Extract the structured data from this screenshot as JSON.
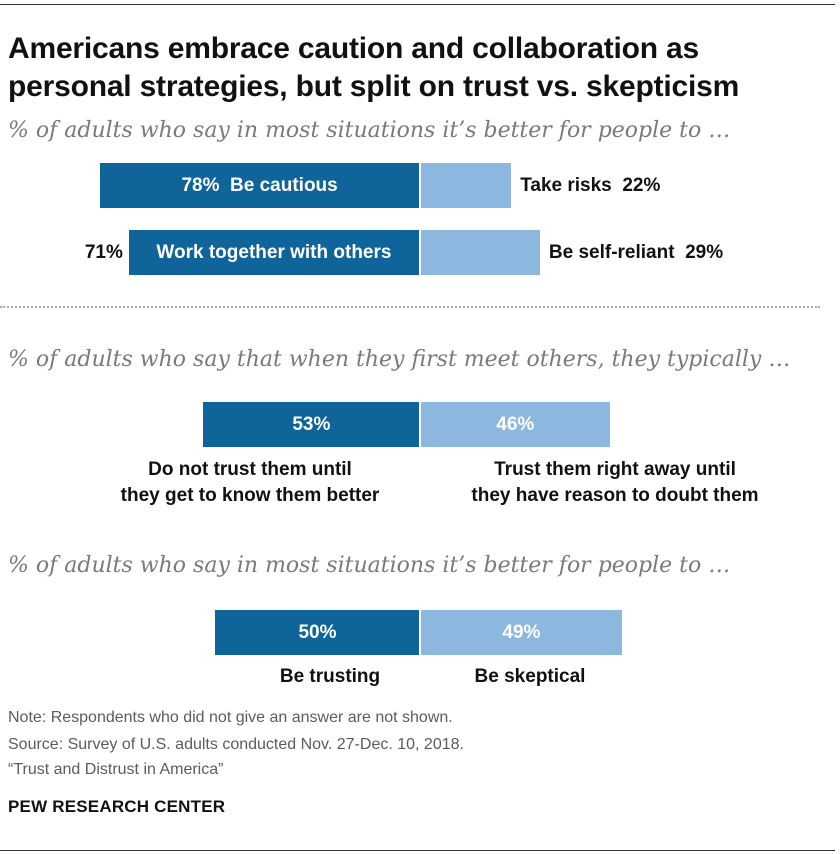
{
  "title": "Americans embrace caution and collaboration as personal strategies, but split on trust vs. skepticism",
  "sections": [
    {
      "subtitle": "% of adults who say in most situations it’s better for people to …",
      "rows": [
        {
          "left_label": "Be cautious",
          "left_value_text": "78%",
          "right_label": "Take risks",
          "right_value_text": "22%"
        },
        {
          "left_label": "Work together with others",
          "left_value_text": "71%",
          "right_label": "Be self-reliant",
          "right_value_text": "29%"
        }
      ]
    },
    {
      "subtitle": "% of adults who say that when they first meet others, they typically …",
      "left_value_text": "53%",
      "right_value_text": "46%",
      "left_caption": [
        "Do not trust them until",
        "they get to know them better"
      ],
      "right_caption": [
        "Trust them right away until",
        "they have reason to doubt them"
      ]
    },
    {
      "subtitle": "% of adults who say in most situations it’s better for people to …",
      "left_value_text": "50%",
      "right_value_text": "49%",
      "left_caption": "Be trusting",
      "right_caption": "Be skeptical"
    }
  ],
  "note": "Note: Respondents who did not give an answer are not shown.",
  "source_lines": [
    "Source: Survey of U.S. adults conducted Nov. 27-Dec. 10, 2018.",
    "“Trust and Distrust in America”"
  ],
  "brand": "PEW RESEARCH CENTER",
  "colors": {
    "dark": "#0f6499",
    "light": "#8cb7df"
  },
  "chart_data": [
    {
      "type": "bar",
      "orientation": "horizontal",
      "diverging": true,
      "categories": [
        "Be cautious vs. Take risks",
        "Work together with others vs. Be self-reliant"
      ],
      "series": [
        {
          "name": "Be cautious / Work together with others",
          "values": [
            78,
            71
          ]
        },
        {
          "name": "Take risks / Be self-reliant",
          "values": [
            22,
            29
          ]
        }
      ]
    },
    {
      "type": "bar",
      "orientation": "horizontal",
      "diverging": true,
      "categories": [
        "When first meeting others"
      ],
      "series": [
        {
          "name": "Do not trust them until they get to know them better",
          "values": [
            53
          ]
        },
        {
          "name": "Trust them right away until they have reason to doubt them",
          "values": [
            46
          ]
        }
      ]
    },
    {
      "type": "bar",
      "orientation": "horizontal",
      "diverging": true,
      "categories": [
        "Trust vs. skepticism"
      ],
      "series": [
        {
          "name": "Be trusting",
          "values": [
            50
          ]
        },
        {
          "name": "Be skeptical",
          "values": [
            49
          ]
        }
      ]
    }
  ]
}
